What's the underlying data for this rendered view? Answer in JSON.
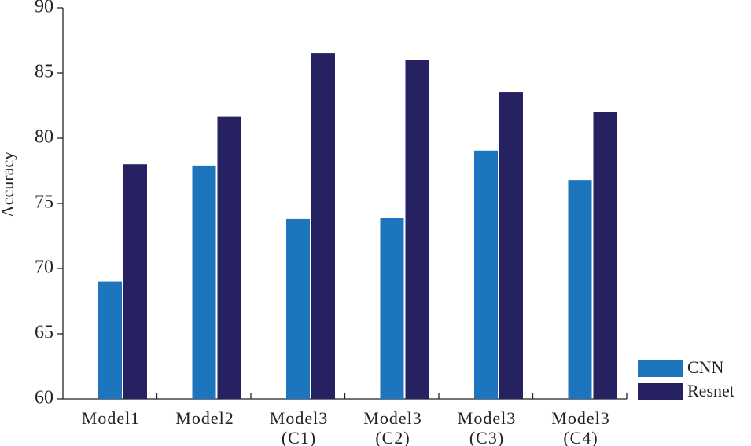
{
  "chart_data": {
    "type": "bar",
    "y_label": "Accuracy",
    "categories": [
      "Model1",
      "Model2",
      "Model3 (C1)",
      "Model3 (C2)",
      "Model3 (C3)",
      "Model3 (C4)"
    ],
    "series": [
      {
        "name": "CNN",
        "color": "#1c75bd",
        "values": [
          69,
          77.9,
          73.8,
          73.9,
          79.05,
          76.8
        ]
      },
      {
        "name": "Resnet",
        "color": "#262262",
        "values": [
          78,
          81.65,
          86.5,
          86,
          83.55,
          82
        ]
      }
    ],
    "ylim": [
      60,
      90
    ],
    "yticks": [
      60,
      65,
      70,
      75,
      80,
      85,
      90
    ],
    "legend": "lower right"
  }
}
